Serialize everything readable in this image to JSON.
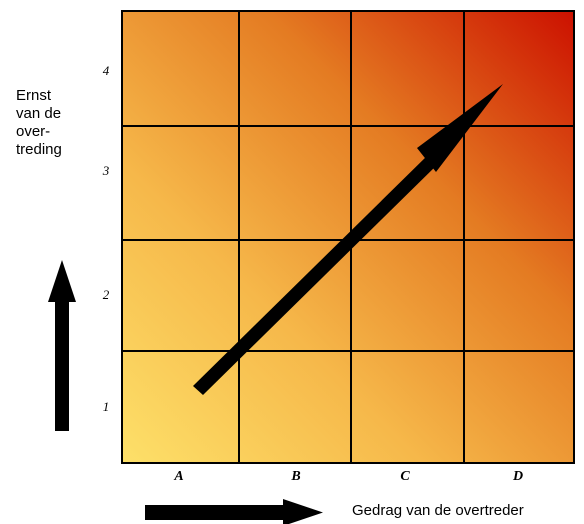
{
  "y_axis": {
    "label_lines": [
      "Ernst",
      "van de",
      "over-",
      "treding"
    ],
    "ticks": [
      "1",
      "2",
      "3",
      "4"
    ]
  },
  "x_axis": {
    "label": "Gedrag van de overtreder",
    "ticks": [
      "A",
      "B",
      "C",
      "D"
    ]
  },
  "grid": {
    "columns": 4,
    "rows": 4,
    "gradient_colors": [
      "#fde069",
      "#f6b84a",
      "#e47b22",
      "#cc1100"
    ]
  },
  "diagonal_arrow": {
    "from": [
      "A",
      "1"
    ],
    "to": [
      "D",
      "4"
    ]
  }
}
